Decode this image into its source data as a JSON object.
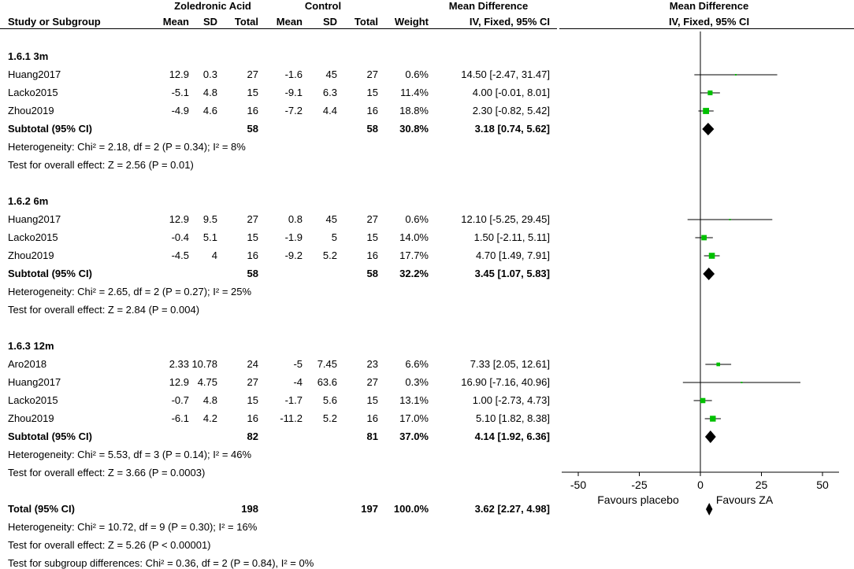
{
  "header": {
    "group1": "Zoledronic Acid",
    "group2": "Control",
    "md_title": "Mean Difference",
    "plot_title": "Mean Difference",
    "col_study": "Study or Subgroup",
    "col_mean1": "Mean",
    "col_sd1": "SD",
    "col_total1": "Total",
    "col_mean2": "Mean",
    "col_sd2": "SD",
    "col_total2": "Total",
    "col_weight": "Weight",
    "col_ci": "IV, Fixed, 95% CI",
    "plot_subtitle": "IV, Fixed, 95% CI"
  },
  "rows": [
    {
      "type": "heading",
      "label": "1.6.1 3m"
    },
    {
      "type": "study",
      "study": "Huang2017",
      "m1": "12.9",
      "sd1": "0.3",
      "n1": "27",
      "m2": "-1.6",
      "sd2": "45",
      "n2": "27",
      "w": "0.6%",
      "ci": "14.50 [-2.47, 31.47]"
    },
    {
      "type": "study",
      "study": "Lacko2015",
      "m1": "-5.1",
      "sd1": "4.8",
      "n1": "15",
      "m2": "-9.1",
      "sd2": "6.3",
      "n2": "15",
      "w": "11.4%",
      "ci": "4.00 [-0.01, 8.01]"
    },
    {
      "type": "study",
      "study": "Zhou2019",
      "m1": "-4.9",
      "sd1": "4.6",
      "n1": "16",
      "m2": "-7.2",
      "sd2": "4.4",
      "n2": "16",
      "w": "18.8%",
      "ci": "2.30 [-0.82, 5.42]"
    },
    {
      "type": "subtotal",
      "study": "Subtotal (95% CI)",
      "n1": "58",
      "n2": "58",
      "w": "30.8%",
      "ci": "3.18 [0.74, 5.62]"
    },
    {
      "type": "note",
      "label": "Heterogeneity: Chi² = 2.18, df = 2 (P = 0.34); I² = 8%"
    },
    {
      "type": "note",
      "label": "Test for overall effect: Z = 2.56 (P = 0.01)"
    },
    {
      "type": "blank"
    },
    {
      "type": "heading",
      "label": "1.6.2 6m"
    },
    {
      "type": "study",
      "study": "Huang2017",
      "m1": "12.9",
      "sd1": "9.5",
      "n1": "27",
      "m2": "0.8",
      "sd2": "45",
      "n2": "27",
      "w": "0.6%",
      "ci": "12.10 [-5.25, 29.45]"
    },
    {
      "type": "study",
      "study": "Lacko2015",
      "m1": "-0.4",
      "sd1": "5.1",
      "n1": "15",
      "m2": "-1.9",
      "sd2": "5",
      "n2": "15",
      "w": "14.0%",
      "ci": "1.50 [-2.11, 5.11]"
    },
    {
      "type": "study",
      "study": "Zhou2019",
      "m1": "-4.5",
      "sd1": "4",
      "n1": "16",
      "m2": "-9.2",
      "sd2": "5.2",
      "n2": "16",
      "w": "17.7%",
      "ci": "4.70 [1.49, 7.91]"
    },
    {
      "type": "subtotal",
      "study": "Subtotal (95% CI)",
      "n1": "58",
      "n2": "58",
      "w": "32.2%",
      "ci": "3.45 [1.07, 5.83]"
    },
    {
      "type": "note",
      "label": "Heterogeneity: Chi² = 2.65, df = 2 (P = 0.27); I² = 25%"
    },
    {
      "type": "note",
      "label": "Test for overall effect: Z = 2.84 (P = 0.004)"
    },
    {
      "type": "blank"
    },
    {
      "type": "heading",
      "label": "1.6.3 12m"
    },
    {
      "type": "study",
      "study": "Aro2018",
      "m1": "2.33",
      "sd1": "10.78",
      "n1": "24",
      "m2": "-5",
      "sd2": "7.45",
      "n2": "23",
      "w": "6.6%",
      "ci": "7.33 [2.05, 12.61]"
    },
    {
      "type": "study",
      "study": "Huang2017",
      "m1": "12.9",
      "sd1": "4.75",
      "n1": "27",
      "m2": "-4",
      "sd2": "63.6",
      "n2": "27",
      "w": "0.3%",
      "ci": "16.90 [-7.16, 40.96]"
    },
    {
      "type": "study",
      "study": "Lacko2015",
      "m1": "-0.7",
      "sd1": "4.8",
      "n1": "15",
      "m2": "-1.7",
      "sd2": "5.6",
      "n2": "15",
      "w": "13.1%",
      "ci": "1.00 [-2.73, 4.73]"
    },
    {
      "type": "study",
      "study": "Zhou2019",
      "m1": "-6.1",
      "sd1": "4.2",
      "n1": "16",
      "m2": "-11.2",
      "sd2": "5.2",
      "n2": "16",
      "w": "17.0%",
      "ci": "5.10 [1.82, 8.38]"
    },
    {
      "type": "subtotal",
      "study": "Subtotal (95% CI)",
      "n1": "82",
      "n2": "81",
      "w": "37.0%",
      "ci": "4.14 [1.92, 6.36]"
    },
    {
      "type": "note",
      "label": "Heterogeneity: Chi² = 5.53, df = 3 (P = 0.14); I² = 46%"
    },
    {
      "type": "note",
      "label": "Test for overall effect: Z = 3.66 (P = 0.0003)"
    },
    {
      "type": "blank"
    },
    {
      "type": "total",
      "study": "Total (95% CI)",
      "n1": "198",
      "n2": "197",
      "w": "100.0%",
      "ci": "3.62 [2.27, 4.98]"
    },
    {
      "type": "note",
      "label": "Heterogeneity: Chi² = 10.72, df = 9 (P = 0.30); I² = 16%"
    },
    {
      "type": "note",
      "label": "Test for overall effect: Z = 5.26 (P < 0.00001)"
    },
    {
      "type": "note",
      "label": "Test for subgroup differences: Chi² = 0.36, df = 2 (P = 0.84), I² = 0%"
    }
  ],
  "chart_data": {
    "type": "forest",
    "title": "Mean Difference",
    "subtitle": "IV, Fixed, 95% CI",
    "xlim": [
      -50,
      50
    ],
    "xticks": [
      -50,
      -25,
      0,
      25,
      50
    ],
    "xlabel_left": "Favours placebo",
    "xlabel_right": "Favours ZA",
    "study_color": "#00c000",
    "summary_color": "#000000",
    "points": [
      {
        "row": 1,
        "kind": "study",
        "md": 14.5,
        "lo": -2.47,
        "hi": 31.47,
        "weight": 0.6
      },
      {
        "row": 2,
        "kind": "study",
        "md": 4.0,
        "lo": -0.01,
        "hi": 8.01,
        "weight": 11.4
      },
      {
        "row": 3,
        "kind": "study",
        "md": 2.3,
        "lo": -0.82,
        "hi": 5.42,
        "weight": 18.8
      },
      {
        "row": 4,
        "kind": "summary",
        "md": 3.18,
        "lo": 0.74,
        "hi": 5.62,
        "weight": 30.8
      },
      {
        "row": 9,
        "kind": "study",
        "md": 12.1,
        "lo": -5.25,
        "hi": 29.45,
        "weight": 0.6
      },
      {
        "row": 10,
        "kind": "study",
        "md": 1.5,
        "lo": -2.11,
        "hi": 5.11,
        "weight": 14.0
      },
      {
        "row": 11,
        "kind": "study",
        "md": 4.7,
        "lo": 1.49,
        "hi": 7.91,
        "weight": 17.7
      },
      {
        "row": 12,
        "kind": "summary",
        "md": 3.45,
        "lo": 1.07,
        "hi": 5.83,
        "weight": 32.2
      },
      {
        "row": 17,
        "kind": "study",
        "md": 7.33,
        "lo": 2.05,
        "hi": 12.61,
        "weight": 6.6
      },
      {
        "row": 18,
        "kind": "study",
        "md": 16.9,
        "lo": -7.16,
        "hi": 40.96,
        "weight": 0.3
      },
      {
        "row": 19,
        "kind": "study",
        "md": 1.0,
        "lo": -2.73,
        "hi": 4.73,
        "weight": 13.1
      },
      {
        "row": 20,
        "kind": "study",
        "md": 5.1,
        "lo": 1.82,
        "hi": 8.38,
        "weight": 17.0
      },
      {
        "row": 21,
        "kind": "summary",
        "md": 4.14,
        "lo": 1.92,
        "hi": 6.36,
        "weight": 37.0
      },
      {
        "row": 25,
        "kind": "summary",
        "md": 3.62,
        "lo": 2.27,
        "hi": 4.98,
        "weight": 100.0
      }
    ]
  }
}
